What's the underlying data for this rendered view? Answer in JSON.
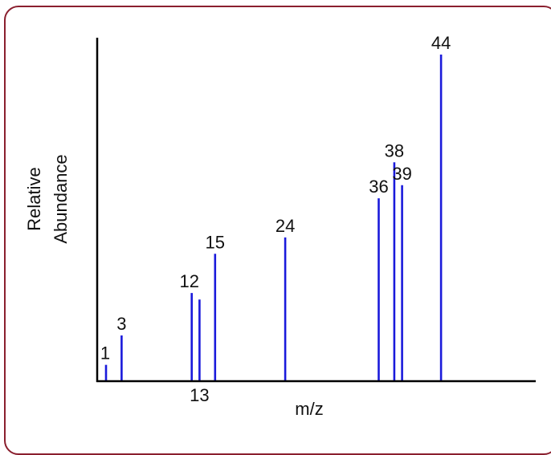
{
  "chart_data": {
    "type": "bar",
    "xlabel": "m/z",
    "ylabel_lines": [
      "Relative",
      "Abundance"
    ],
    "x_tick_labels": [],
    "y_tick_labels": [],
    "peaks": [
      {
        "mz": 1,
        "abundance": 5,
        "label": "1"
      },
      {
        "mz": 3,
        "abundance": 14,
        "label": "3"
      },
      {
        "mz": 12,
        "abundance": 27,
        "label": "12"
      },
      {
        "mz": 13,
        "abundance": 25,
        "label": "13"
      },
      {
        "mz": 15,
        "abundance": 39,
        "label": "15"
      },
      {
        "mz": 24,
        "abundance": 44,
        "label": "24"
      },
      {
        "mz": 36,
        "abundance": 56,
        "label": "36"
      },
      {
        "mz": 38,
        "abundance": 67,
        "label": "38"
      },
      {
        "mz": 39,
        "abundance": 60,
        "label": "39"
      },
      {
        "mz": 44,
        "abundance": 100,
        "label": "44"
      }
    ],
    "bar_color": "#1a1adb",
    "axis_color": "#000000",
    "frame_color": "#8a1f2e",
    "grid": false,
    "legend": "none"
  }
}
